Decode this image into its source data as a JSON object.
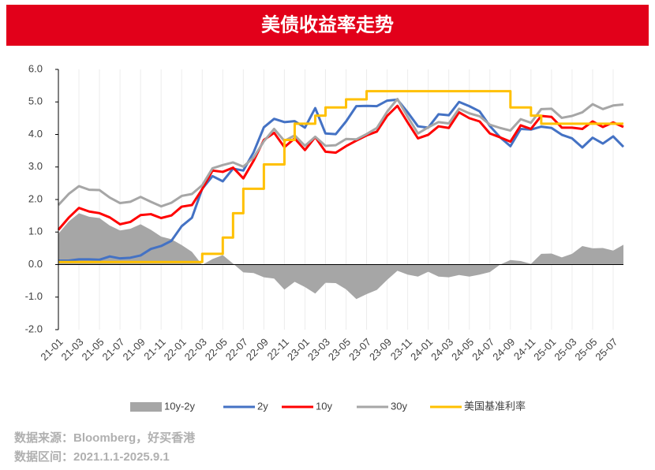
{
  "chart_data": {
    "type": "line",
    "title": "美债收益率走势",
    "notes": [
      "数据来源：Bloomberg，好买香港",
      "数据区间：2021.1.1-2025.9.1"
    ],
    "categories": [
      "21-01",
      null,
      "21-03",
      null,
      "21-05",
      null,
      "21-07",
      null,
      "21-09",
      null,
      "21-11",
      null,
      "22-01",
      null,
      "22-03",
      null,
      "22-05",
      null,
      "22-07",
      null,
      "22-09",
      null,
      "22-11",
      null,
      "23-01",
      null,
      "23-03",
      null,
      "23-05",
      null,
      "23-07",
      null,
      "23-09",
      null,
      "23-11",
      null,
      "24-01",
      null,
      "24-03",
      null,
      "24-05",
      null,
      "24-07",
      null,
      "24-09",
      null,
      "24-11",
      null,
      "25-01",
      null,
      "25-03",
      null,
      "25-05",
      null,
      "25-07",
      null
    ],
    "ylim": [
      -2,
      6
    ],
    "yticks": [
      {
        "value": -2,
        "label": "-2.0"
      },
      {
        "value": -1,
        "label": "-1.0"
      },
      {
        "value": 0,
        "label": "0.0"
      },
      {
        "value": 1,
        "label": "1.0"
      },
      {
        "value": 2,
        "label": "2.0"
      },
      {
        "value": 3,
        "label": "3.0"
      },
      {
        "value": 4,
        "label": "4.0"
      },
      {
        "value": 5,
        "label": "5.0"
      },
      {
        "value": 6,
        "label": "6.0"
      }
    ],
    "grid": "x",
    "series": [
      {
        "name": "10y-2y",
        "kind": "area",
        "color": "#a6a6a6",
        "values": [
          0.95,
          1.32,
          1.58,
          1.47,
          1.43,
          1.2,
          1.05,
          1.1,
          1.24,
          1.07,
          0.86,
          0.78,
          0.6,
          0.39,
          -0.01,
          0.17,
          0.29,
          0.03,
          -0.24,
          -0.26,
          -0.39,
          -0.43,
          -0.77,
          -0.53,
          -0.69,
          -0.89,
          -0.56,
          -0.57,
          -0.76,
          -1.06,
          -0.91,
          -0.78,
          -0.47,
          -0.19,
          -0.31,
          -0.37,
          -0.22,
          -0.37,
          -0.39,
          -0.32,
          -0.37,
          -0.31,
          -0.23,
          0.0,
          0.14,
          0.11,
          0.02,
          0.33,
          0.34,
          0.22,
          0.33,
          0.57,
          0.5,
          0.51,
          0.43,
          0.61
        ]
      },
      {
        "name": "2y",
        "kind": "line",
        "color": "#4472c4",
        "values": [
          0.12,
          0.12,
          0.16,
          0.16,
          0.15,
          0.25,
          0.19,
          0.21,
          0.28,
          0.48,
          0.57,
          0.73,
          1.18,
          1.44,
          2.33,
          2.72,
          2.56,
          2.95,
          2.89,
          3.45,
          4.22,
          4.48,
          4.38,
          4.41,
          4.21,
          4.81,
          4.03,
          4.01,
          4.4,
          4.87,
          4.88,
          4.87,
          5.04,
          5.07,
          4.68,
          4.25,
          4.21,
          4.62,
          4.59,
          5.0,
          4.87,
          4.71,
          4.26,
          3.91,
          3.64,
          4.17,
          4.15,
          4.24,
          4.2,
          3.99,
          3.88,
          3.6,
          3.9,
          3.72,
          3.94,
          3.62
        ]
      },
      {
        "name": "10y",
        "kind": "line",
        "color": "#ff0000",
        "values": [
          1.07,
          1.44,
          1.74,
          1.63,
          1.58,
          1.45,
          1.24,
          1.31,
          1.52,
          1.55,
          1.43,
          1.51,
          1.78,
          1.83,
          2.32,
          2.89,
          2.85,
          2.98,
          2.65,
          3.19,
          3.83,
          4.05,
          3.61,
          3.88,
          3.52,
          3.92,
          3.47,
          3.44,
          3.64,
          3.81,
          3.97,
          4.09,
          4.57,
          4.88,
          4.37,
          3.88,
          3.99,
          4.25,
          4.2,
          4.68,
          4.5,
          4.4,
          4.03,
          3.91,
          3.78,
          4.28,
          4.17,
          4.57,
          4.54,
          4.21,
          4.21,
          4.17,
          4.4,
          4.23,
          4.37,
          4.23
        ]
      },
      {
        "name": "30y",
        "kind": "line",
        "color": "#a6a6a6",
        "values": [
          1.83,
          2.17,
          2.41,
          2.3,
          2.29,
          2.06,
          1.89,
          1.93,
          2.08,
          1.93,
          1.79,
          1.9,
          2.11,
          2.17,
          2.44,
          2.96,
          3.06,
          3.14,
          3.01,
          3.29,
          3.79,
          4.17,
          3.8,
          3.97,
          3.65,
          3.93,
          3.65,
          3.67,
          3.86,
          3.85,
          4.01,
          4.2,
          4.7,
          5.09,
          4.54,
          4.03,
          4.22,
          4.38,
          4.34,
          4.79,
          4.65,
          4.56,
          4.3,
          4.2,
          4.12,
          4.47,
          4.36,
          4.78,
          4.79,
          4.51,
          4.57,
          4.68,
          4.93,
          4.78,
          4.89,
          4.92
        ]
      },
      {
        "name": "美国基准利率",
        "kind": "step",
        "color": "#ffc000",
        "values": [
          0.08,
          0.08,
          0.08,
          0.08,
          0.08,
          0.08,
          0.08,
          0.08,
          0.08,
          0.08,
          0.08,
          0.08,
          0.08,
          0.08,
          0.33,
          0.33,
          0.83,
          1.58,
          2.33,
          2.33,
          3.08,
          3.08,
          3.83,
          4.33,
          4.33,
          4.58,
          4.83,
          4.83,
          5.08,
          5.08,
          5.33,
          5.33,
          5.33,
          5.33,
          5.33,
          5.33,
          5.33,
          5.33,
          5.33,
          5.33,
          5.33,
          5.33,
          5.33,
          5.33,
          4.83,
          4.83,
          4.58,
          4.33,
          4.33,
          4.33,
          4.33,
          4.33,
          4.33,
          4.33,
          4.33,
          4.33
        ]
      }
    ]
  }
}
